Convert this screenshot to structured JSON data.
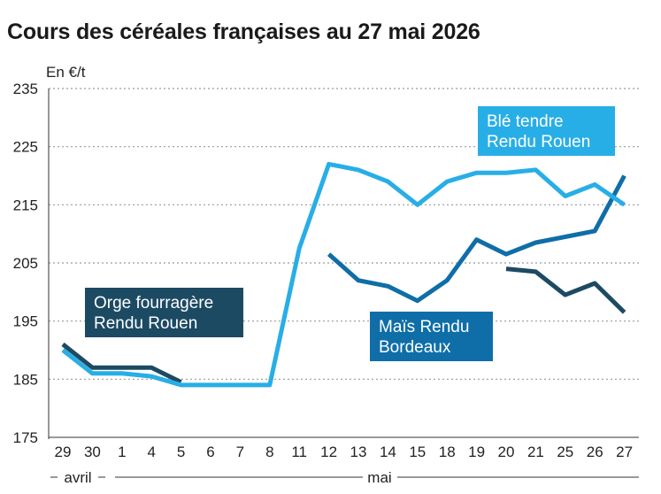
{
  "title": "Cours des céréales françaises au 27 mai 2026",
  "chart_data": {
    "type": "line",
    "title": "Cours des céréales françaises au 27 mai 2026",
    "unit_label": "En €/t",
    "ylim": [
      175,
      235
    ],
    "yticks": [
      175,
      185,
      195,
      205,
      215,
      225,
      235
    ],
    "grid": true,
    "categories": [
      "29",
      "30",
      "1",
      "4",
      "5",
      "6",
      "7",
      "8",
      "11",
      "12",
      "13",
      "14",
      "15",
      "18",
      "19",
      "20",
      "21",
      "25",
      "26",
      "27"
    ],
    "month_labels": [
      {
        "text": "avril",
        "from": 0,
        "to": 1
      },
      {
        "text": "mai",
        "from": 2,
        "to": 19
      }
    ],
    "series": [
      {
        "name": "Orge fourragère Rendu Rouen",
        "label_lines": [
          "Orge fourragère",
          "Rendu Rouen"
        ],
        "color": "#1d4a63",
        "values": [
          191,
          187,
          187,
          187,
          184.5,
          null,
          null,
          null,
          null,
          null,
          null,
          null,
          null,
          null,
          null,
          204,
          203.5,
          199.5,
          201.5,
          196.5
        ]
      },
      {
        "name": "Maïs Rendu Bordeaux",
        "label_lines": [
          "Maïs Rendu",
          "Bordeaux"
        ],
        "color": "#0f6ea8",
        "values": [
          null,
          null,
          null,
          null,
          null,
          null,
          null,
          null,
          null,
          206.5,
          202,
          201,
          198.5,
          202,
          209,
          206.5,
          208.5,
          209.5,
          210.5,
          220
        ]
      },
      {
        "name": "Blé tendre Rendu Rouen",
        "label_lines": [
          "Blé tendre",
          "Rendu Rouen"
        ],
        "color": "#28aee6",
        "values": [
          190,
          186,
          186,
          185.5,
          184,
          184,
          184,
          184,
          207.5,
          222,
          221,
          219,
          215,
          219,
          220.5,
          220.5,
          221,
          216.5,
          218.5,
          215
        ]
      }
    ]
  }
}
